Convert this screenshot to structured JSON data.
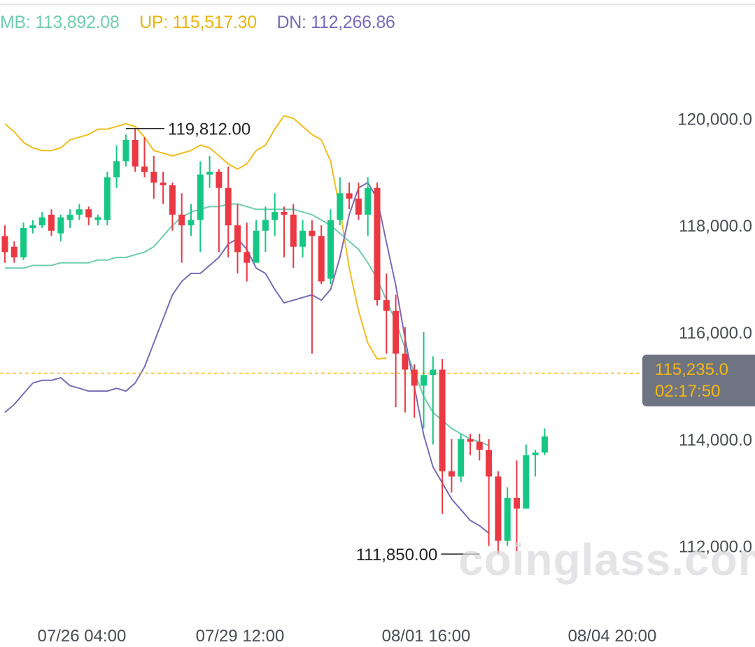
{
  "legend": {
    "mb": "MB: 113,892.08",
    "up": "UP: 115,517.30",
    "dn": "DN: 112,266.86"
  },
  "price_tag": {
    "price": "115,235.0",
    "countdown": "02:17:50"
  },
  "watermark": "coinglass.com",
  "colors": {
    "mb": "#6fcdb0",
    "up": "#f2bd1d",
    "dn": "#7a6ab8",
    "bull": "#16c784",
    "bear": "#ea3943",
    "last_line": "#f4b80f"
  },
  "chart_data": {
    "type": "candlestick",
    "ylim": [
      110700,
      121300
    ],
    "y_ticks": [
      120000,
      118000,
      116000,
      114000,
      112000
    ],
    "y_tick_labels": [
      "120,000.0",
      "118,000.0",
      "116,000.0",
      "114,000.0",
      "112,000.0"
    ],
    "x_labels": [
      {
        "label": "07/26 04:00",
        "index": 3
      },
      {
        "label": "07/29 12:00",
        "index": 20
      },
      {
        "label": "08/01 16:00",
        "index": 40
      },
      {
        "label": "08/04 20:00",
        "index": 60
      }
    ],
    "high_label": {
      "text": "119,812.00",
      "index": 13,
      "value": 119812
    },
    "low_label": {
      "text": "111,850.00",
      "index": 51,
      "value": 111850
    },
    "last_price": 115235,
    "candles": [
      [
        117800,
        118000,
        117300,
        117500
      ],
      [
        117600,
        117700,
        117300,
        117400
      ],
      [
        117400,
        118050,
        117350,
        117950
      ],
      [
        117950,
        118100,
        117850,
        118000
      ],
      [
        118000,
        118250,
        117950,
        118150
      ],
      [
        118200,
        118300,
        117800,
        117900
      ],
      [
        117850,
        118200,
        117700,
        118150
      ],
      [
        118100,
        118300,
        117950,
        118200
      ],
      [
        118200,
        118400,
        118100,
        118300
      ],
      [
        118300,
        118350,
        118000,
        118150
      ],
      [
        118100,
        118200,
        118000,
        118150
      ],
      [
        118100,
        119000,
        118000,
        118900
      ],
      [
        118900,
        119500,
        118700,
        119200
      ],
      [
        119200,
        119700,
        119100,
        119600
      ],
      [
        119600,
        119812,
        119000,
        119100
      ],
      [
        119100,
        119650,
        118900,
        119000
      ],
      [
        119000,
        119300,
        118500,
        118800
      ],
      [
        118800,
        119000,
        118400,
        118750
      ],
      [
        118750,
        118800,
        117900,
        118200
      ],
      [
        118200,
        118600,
        117300,
        118000
      ],
      [
        118000,
        118400,
        117800,
        118100
      ],
      [
        118100,
        119200,
        117500,
        118950
      ],
      [
        118950,
        119300,
        118700,
        119000
      ],
      [
        119000,
        119050,
        117500,
        118700
      ],
      [
        118700,
        119100,
        117400,
        118000
      ],
      [
        118000,
        118400,
        117100,
        117500
      ],
      [
        117500,
        118050,
        116950,
        117300
      ],
      [
        117300,
        118100,
        117400,
        117900
      ],
      [
        117900,
        118350,
        117500,
        118100
      ],
      [
        118100,
        118600,
        117800,
        118250
      ],
      [
        118250,
        118350,
        117400,
        118200
      ],
      [
        118200,
        118400,
        117200,
        117600
      ],
      [
        117600,
        118100,
        117400,
        117900
      ],
      [
        117900,
        118100,
        115600,
        117800
      ],
      [
        117800,
        118000,
        116900,
        116950
      ],
      [
        117000,
        118300,
        116900,
        118100
      ],
      [
        118100,
        118900,
        118000,
        118600
      ],
      [
        118600,
        118800,
        118300,
        118500
      ],
      [
        118500,
        118800,
        118100,
        118200
      ],
      [
        118200,
        118900,
        117800,
        118700
      ],
      [
        118700,
        118800,
        116500,
        116600
      ],
      [
        116600,
        117100,
        115600,
        116400
      ],
      [
        116400,
        116700,
        114600,
        115600
      ],
      [
        115600,
        116100,
        114500,
        115300
      ],
      [
        115300,
        115400,
        114400,
        115000
      ],
      [
        115000,
        116000,
        114200,
        115200
      ],
      [
        115200,
        115550,
        113900,
        115300
      ],
      [
        115300,
        115500,
        112600,
        113400
      ],
      [
        113400,
        114000,
        113000,
        113300
      ],
      [
        113300,
        114100,
        113200,
        114000
      ],
      [
        114000,
        114100,
        113700,
        113950
      ],
      [
        113950,
        114100,
        113600,
        113800
      ],
      [
        113800,
        114000,
        112000,
        113300
      ],
      [
        113300,
        113400,
        111850,
        112100
      ],
      [
        112100,
        113100,
        112000,
        112900
      ],
      [
        112900,
        113600,
        111900,
        112700
      ],
      [
        112700,
        113900,
        112700,
        113700
      ],
      [
        113700,
        113800,
        113300,
        113750
      ],
      [
        113750,
        114200,
        113700,
        114050
      ]
    ],
    "mb": [
      117200,
      117200,
      117200,
      117250,
      117250,
      117250,
      117300,
      117300,
      117300,
      117300,
      117350,
      117350,
      117400,
      117400,
      117450,
      117500,
      117600,
      117800,
      118000,
      118150,
      118250,
      118300,
      118350,
      118350,
      118400,
      118400,
      118350,
      118300,
      118300,
      118300,
      118300,
      118300,
      118250,
      118200,
      118100,
      118000,
      117850,
      117700,
      117550,
      117300,
      117000,
      116600,
      116200,
      115700,
      115250,
      114800,
      114500,
      114350,
      114200,
      114100,
      114000,
      113950,
      113880
    ],
    "up": [
      119900,
      119750,
      119550,
      119450,
      119400,
      119400,
      119450,
      119600,
      119650,
      119700,
      119800,
      119800,
      119850,
      119900,
      119850,
      119650,
      119400,
      119350,
      119300,
      119350,
      119400,
      119500,
      119450,
      119300,
      119150,
      119050,
      119150,
      119400,
      119500,
      119800,
      120050,
      120000,
      119850,
      119700,
      119600,
      119200,
      118300,
      117200,
      116400,
      115800,
      115500,
      115520
    ]
  }
}
